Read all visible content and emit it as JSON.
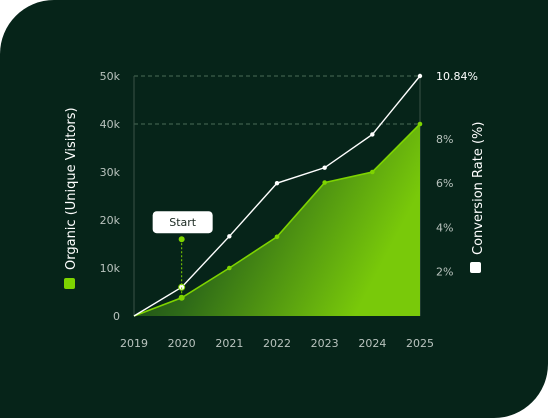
{
  "chart_data": {
    "type": "area",
    "x": [
      "2019",
      "2020",
      "2021",
      "2022",
      "2023",
      "2024",
      "2025"
    ],
    "series": [
      {
        "name": "Organic (Unique Visitors)",
        "axis": "left",
        "style": "filled-area",
        "color": "#7ed400",
        "values": [
          0,
          3800,
          10000,
          16500,
          27800,
          30000,
          40000
        ]
      },
      {
        "name": "Conversion Rate (%)",
        "axis": "right",
        "style": "line",
        "color": "#ffffff",
        "values": [
          0,
          1.3,
          3.6,
          6.0,
          6.7,
          8.2,
          10.84
        ]
      }
    ],
    "ylabel_left": "Organic (Unique Visitors)",
    "ylabel_right": "Conversion Rate (%)",
    "yticks_left": [
      "0",
      "10k",
      "20k",
      "30k",
      "40k",
      "50k"
    ],
    "yticks_right": [
      "2%",
      "4%",
      "6%",
      "8%",
      "10.84%"
    ],
    "ylim_left": [
      0,
      50000
    ],
    "ylim_right": [
      0,
      10.84
    ],
    "annotation": {
      "label": "Start",
      "x": "2020",
      "value": 16000
    },
    "legend": "axis-titles",
    "grid": "dashed at 40k and 50k"
  }
}
